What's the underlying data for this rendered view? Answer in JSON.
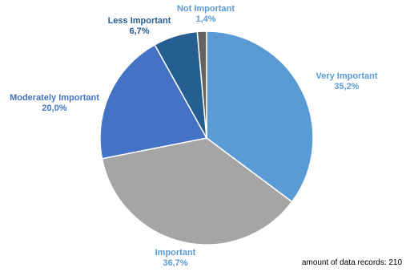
{
  "chart_data": {
    "type": "pie",
    "start_angle_deg": 0,
    "direction": "clockwise",
    "slices": [
      {
        "label": "Very Important",
        "value": 35.2,
        "value_text": "35,2%",
        "color": "#5b9bd5",
        "label_color": "#5b9bd5"
      },
      {
        "label": "Important",
        "value": 36.7,
        "value_text": "36,7%",
        "color": "#a5a5a5",
        "label_color": "#5b9bd5"
      },
      {
        "label": "Moderately Important",
        "value": 20.0,
        "value_text": "20,0%",
        "color": "#4472c4",
        "label_color": "#4472c4"
      },
      {
        "label": "Less Important",
        "value": 6.7,
        "value_text": "6,7%",
        "color": "#255e91",
        "label_color": "#255e91"
      },
      {
        "label": "Not Important",
        "value": 1.4,
        "value_text": "1,4%",
        "color": "#636363",
        "label_color": "#5b9bd5"
      }
    ]
  },
  "footnote": "amount of data records: 210"
}
